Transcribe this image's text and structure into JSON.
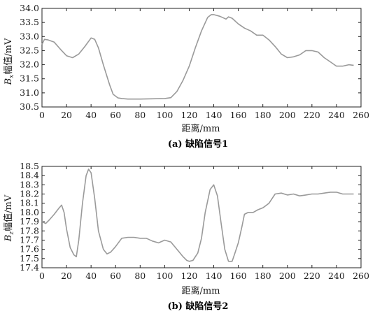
{
  "chart_data": [
    {
      "type": "line",
      "caption": "(a) 缺陷信号1",
      "xlabel": "距离/mm",
      "ylabel_symbol": "B",
      "ylabel_subscript": "x",
      "ylabel_rest": "幅值/mV",
      "xlim": [
        0,
        260
      ],
      "ylim": [
        30.5,
        34.0
      ],
      "xticks": [
        0,
        20,
        40,
        60,
        80,
        100,
        120,
        140,
        160,
        180,
        200,
        220,
        240,
        260
      ],
      "yticks": [
        "30.5",
        "31.0",
        "31.5",
        "32.0",
        "32.5",
        "33.0",
        "33.5",
        "34.0"
      ],
      "grid": false,
      "line_color": "#9a9a9a",
      "x": [
        0,
        2,
        5,
        10,
        15,
        20,
        25,
        30,
        35,
        40,
        43,
        46,
        50,
        55,
        58,
        62,
        65,
        70,
        80,
        90,
        100,
        105,
        110,
        115,
        120,
        125,
        130,
        135,
        138,
        140,
        145,
        150,
        152,
        155,
        160,
        165,
        170,
        175,
        180,
        185,
        190,
        195,
        200,
        205,
        210,
        215,
        220,
        225,
        230,
        235,
        240,
        245,
        250,
        254
      ],
      "y": [
        32.72,
        32.9,
        32.88,
        32.8,
        32.55,
        32.32,
        32.25,
        32.38,
        32.65,
        32.95,
        32.9,
        32.6,
        32.0,
        31.3,
        30.95,
        30.82,
        30.8,
        30.78,
        30.78,
        30.79,
        30.8,
        30.83,
        31.05,
        31.45,
        31.95,
        32.6,
        33.2,
        33.68,
        33.78,
        33.78,
        33.72,
        33.62,
        33.7,
        33.65,
        33.45,
        33.3,
        33.2,
        33.05,
        33.05,
        32.88,
        32.65,
        32.38,
        32.25,
        32.28,
        32.35,
        32.5,
        32.5,
        32.45,
        32.25,
        32.1,
        31.95,
        31.95,
        32.0,
        31.98
      ]
    },
    {
      "type": "line",
      "caption": "(b) 缺陷信号2",
      "xlabel": "距离/mm",
      "ylabel_symbol": "B",
      "ylabel_subscript": "z",
      "ylabel_rest": "幅值/mV",
      "xlim": [
        0,
        260
      ],
      "ylim": [
        17.4,
        18.5
      ],
      "xticks": [
        0,
        20,
        40,
        60,
        80,
        100,
        120,
        140,
        160,
        180,
        200,
        220,
        240,
        260
      ],
      "yticks": [
        "17.4",
        "17.5",
        "17.6",
        "17.7",
        "17.8",
        "17.9",
        "18.0",
        "18.1",
        "18.2",
        "18.3",
        "18.4",
        "18.5"
      ],
      "grid": false,
      "line_color": "#9a9a9a",
      "x": [
        0,
        3,
        6,
        10,
        14,
        16,
        18,
        20,
        23,
        26,
        28,
        30,
        33,
        36,
        38,
        40,
        43,
        46,
        50,
        53,
        56,
        60,
        65,
        70,
        75,
        80,
        85,
        90,
        95,
        100,
        105,
        110,
        115,
        118,
        120,
        123,
        127,
        130,
        133,
        137,
        140,
        143,
        146,
        149,
        152,
        155,
        157,
        160,
        163,
        165,
        168,
        172,
        176,
        180,
        185,
        190,
        195,
        200,
        205,
        210,
        215,
        220,
        225,
        230,
        235,
        240,
        245,
        250,
        254
      ],
      "y": [
        17.9,
        17.88,
        17.92,
        17.98,
        18.05,
        18.08,
        18.0,
        17.82,
        17.62,
        17.54,
        17.52,
        17.7,
        18.1,
        18.4,
        18.47,
        18.43,
        18.15,
        17.8,
        17.6,
        17.55,
        17.57,
        17.63,
        17.72,
        17.73,
        17.73,
        17.72,
        17.72,
        17.69,
        17.67,
        17.7,
        17.68,
        17.6,
        17.52,
        17.48,
        17.47,
        17.48,
        17.56,
        17.72,
        18.0,
        18.25,
        18.3,
        18.18,
        17.88,
        17.6,
        17.47,
        17.47,
        17.55,
        17.67,
        17.85,
        17.98,
        18.0,
        18.0,
        18.03,
        18.05,
        18.1,
        18.2,
        18.21,
        18.19,
        18.2,
        18.18,
        18.19,
        18.2,
        18.2,
        18.21,
        18.22,
        18.22,
        18.2,
        18.2,
        18.2
      ]
    }
  ]
}
